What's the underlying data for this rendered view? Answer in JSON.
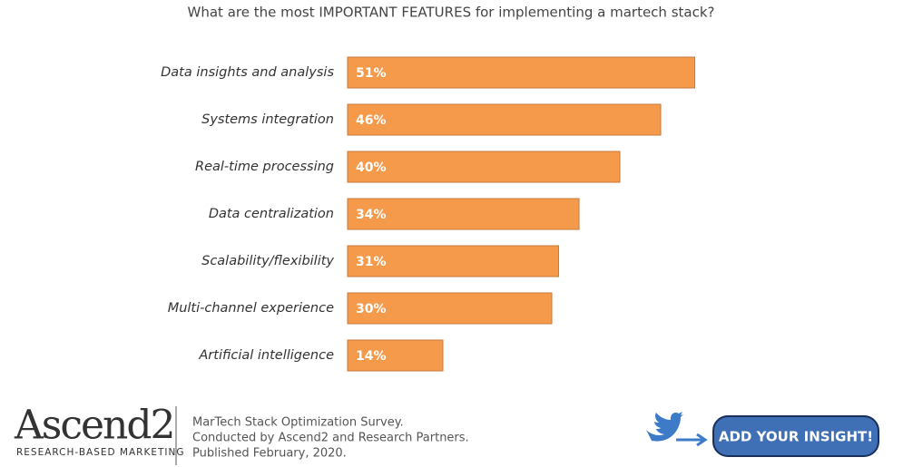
{
  "chart_data": {
    "type": "bar",
    "orientation": "horizontal",
    "title": "What are the most IMPORTANT FEATURES for implementing a martech stack?",
    "categories": [
      "Data insights and analysis",
      "Systems integration",
      "Real-time processing",
      "Data centralization",
      "Scalability/flexibility",
      "Multi-channel experience",
      "Artificial intelligence"
    ],
    "values": [
      51,
      46,
      40,
      34,
      31,
      30,
      14
    ],
    "value_labels": [
      "51%",
      "46%",
      "40%",
      "34%",
      "31%",
      "30%",
      "14%"
    ],
    "color": "#f5994a"
  },
  "footer": {
    "logo": "Ascend2",
    "logo_tagline": "RESEARCH-BASED MARKETING",
    "source_lines": [
      "MarTech Stack Optimization Survey.",
      "Conducted  by Ascend2 and Research Partners.",
      "Published February, 2020."
    ],
    "button": "ADD YOUR INSIGHT!"
  }
}
